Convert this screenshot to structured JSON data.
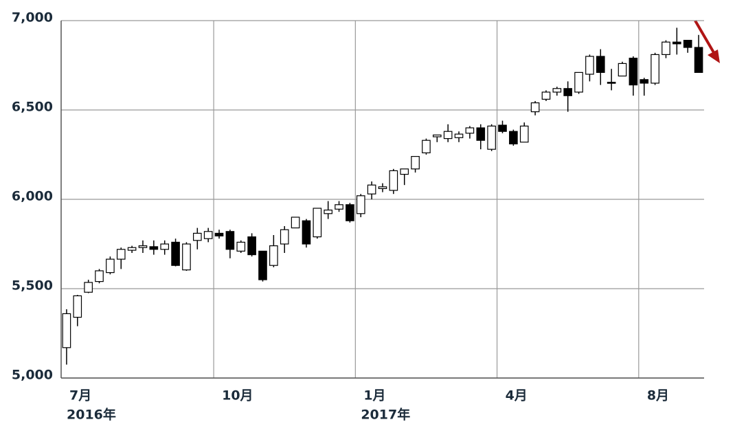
{
  "chart_data": {
    "type": "candlestick",
    "categories": [
      "7月",
      null,
      null,
      null,
      null,
      null,
      null,
      null,
      null,
      null,
      null,
      null,
      null,
      null,
      "10月",
      null,
      null,
      null,
      null,
      null,
      null,
      null,
      null,
      null,
      null,
      null,
      null,
      "1月",
      null,
      null,
      null,
      null,
      null,
      null,
      null,
      null,
      null,
      null,
      null,
      null,
      "4月",
      null,
      null,
      null,
      null,
      null,
      null,
      null,
      null,
      null,
      null,
      null,
      null,
      "8月",
      null,
      null,
      null,
      null,
      null
    ],
    "category_groups": [
      "2016年",
      null,
      null,
      null,
      null,
      null,
      null,
      null,
      null,
      null,
      null,
      null,
      null,
      null,
      null,
      null,
      null,
      null,
      null,
      null,
      null,
      null,
      null,
      null,
      null,
      null,
      null,
      "2017年",
      null,
      null,
      null,
      null,
      null,
      null,
      null,
      null,
      null,
      null,
      null,
      null,
      null,
      null,
      null,
      null,
      null,
      null,
      null,
      null,
      null,
      null,
      null,
      null,
      null,
      null,
      null,
      null,
      null,
      null,
      null
    ],
    "open": [
      5170,
      5340,
      5480,
      5540,
      5590,
      5665,
      5715,
      5730,
      5735,
      5720,
      5760,
      5605,
      5770,
      5780,
      5810,
      5820,
      5710,
      5790,
      5710,
      5630,
      5750,
      5840,
      5880,
      5790,
      5920,
      5945,
      5970,
      5920,
      6030,
      6060,
      6050,
      6140,
      6170,
      6260,
      6350,
      6340,
      6345,
      6370,
      6400,
      6280,
      6415,
      6380,
      6320,
      6490,
      6560,
      6600,
      6620,
      6600,
      6700,
      6800,
      6655,
      6690,
      6790,
      6670,
      6650,
      6810,
      6880,
      6890,
      6850
    ],
    "high": [
      5385,
      5465,
      5550,
      5610,
      5680,
      5730,
      5740,
      5770,
      5770,
      5770,
      5780,
      5760,
      5840,
      5840,
      5830,
      5830,
      5770,
      5810,
      5710,
      5800,
      5850,
      5900,
      5890,
      5950,
      5990,
      5990,
      5980,
      6030,
      6100,
      6090,
      6170,
      6170,
      6240,
      6340,
      6360,
      6420,
      6380,
      6410,
      6420,
      6420,
      6440,
      6390,
      6430,
      6550,
      6610,
      6630,
      6660,
      6710,
      6810,
      6840,
      6730,
      6770,
      6800,
      6680,
      6820,
      6890,
      6960,
      6890,
      6920
    ],
    "low": [
      5075,
      5290,
      5475,
      5530,
      5580,
      5610,
      5700,
      5700,
      5690,
      5690,
      5625,
      5600,
      5720,
      5760,
      5780,
      5670,
      5700,
      5680,
      5540,
      5620,
      5700,
      5840,
      5730,
      5780,
      5890,
      5930,
      5870,
      5900,
      6000,
      6040,
      6030,
      6080,
      6150,
      6250,
      6320,
      6320,
      6320,
      6340,
      6280,
      6270,
      6370,
      6300,
      6320,
      6470,
      6550,
      6580,
      6490,
      6590,
      6660,
      6640,
      6610,
      6690,
      6580,
      6580,
      6640,
      6790,
      6810,
      6820,
      6710
    ],
    "close": [
      5360,
      5460,
      5535,
      5600,
      5665,
      5720,
      5730,
      5740,
      5720,
      5750,
      5630,
      5750,
      5810,
      5820,
      5795,
      5720,
      5760,
      5690,
      5550,
      5740,
      5830,
      5900,
      5750,
      5950,
      5940,
      5970,
      5880,
      6020,
      6080,
      6070,
      6160,
      6170,
      6240,
      6330,
      6360,
      6380,
      6365,
      6400,
      6330,
      6410,
      6380,
      6310,
      6410,
      6540,
      6600,
      6620,
      6580,
      6710,
      6800,
      6710,
      6650,
      6760,
      6640,
      6650,
      6810,
      6880,
      6870,
      6850,
      6710
    ],
    "ylim": [
      5000,
      7000
    ],
    "yticks": [
      {
        "value": 5000,
        "label": "5,000"
      },
      {
        "value": 5500,
        "label": "5,500"
      },
      {
        "value": 6000,
        "label": "6,000"
      },
      {
        "value": 6500,
        "label": "6,500"
      },
      {
        "value": 7000,
        "label": "7,000"
      }
    ],
    "up_color": "#ffffff",
    "down_color": "#000000",
    "grid": true
  }
}
